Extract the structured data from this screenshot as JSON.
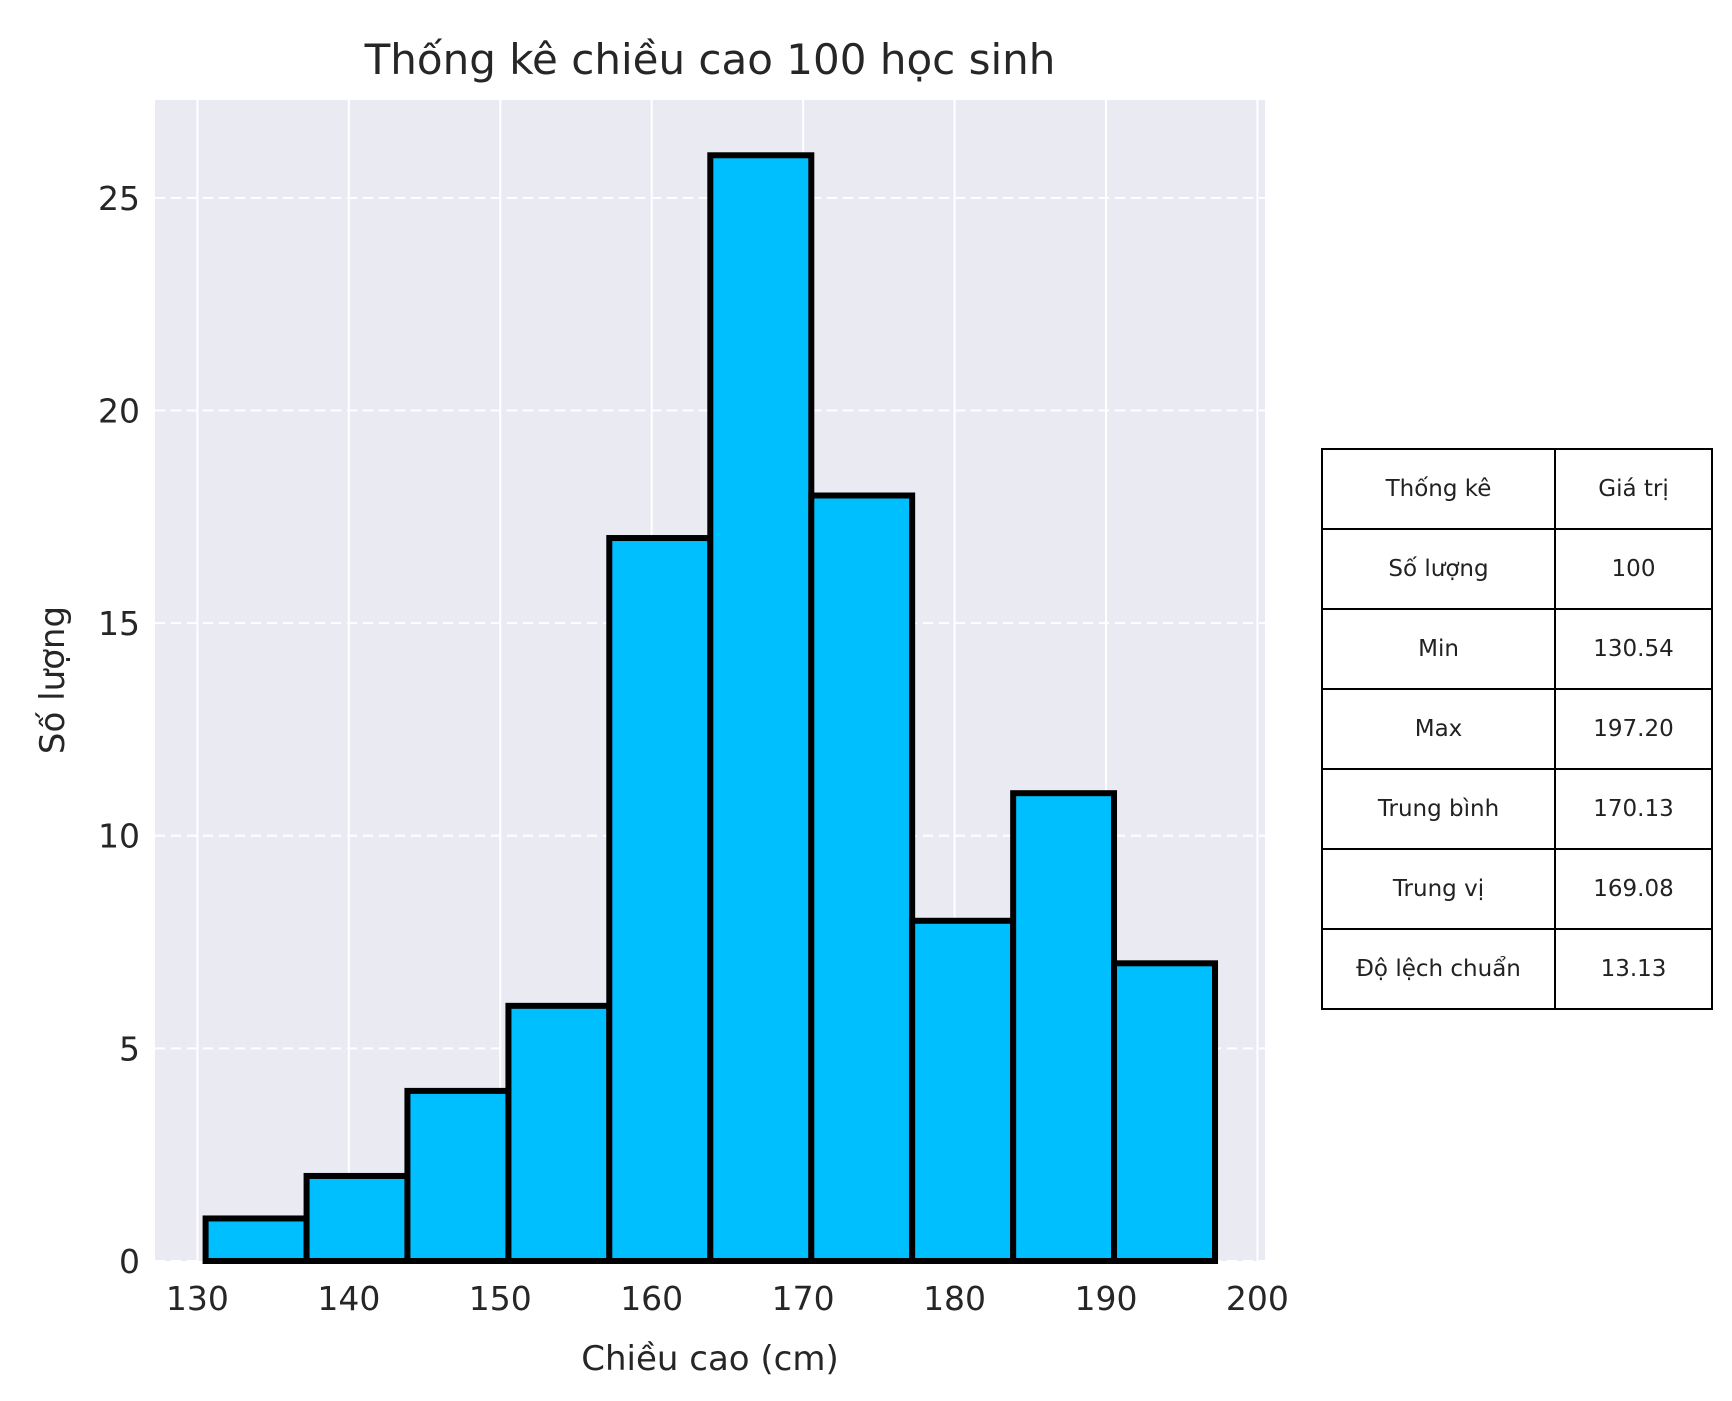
{
  "chart_data": {
    "type": "bar",
    "title": "Thống kê chiều cao 100 học sinh",
    "xlabel": "Chiều cao (cm)",
    "ylabel": "Số lượng",
    "bin_edges": [
      130.54,
      137.21,
      143.87,
      150.54,
      157.2,
      163.87,
      170.54,
      177.2,
      183.87,
      190.53,
      197.2
    ],
    "values": [
      1,
      2,
      4,
      6,
      17,
      26,
      18,
      8,
      11,
      7
    ],
    "xlim": [
      127.2,
      200.5
    ],
    "ylim": [
      0,
      27.3
    ],
    "xticks": [
      130,
      140,
      150,
      160,
      170,
      180,
      190,
      200
    ],
    "yticks": [
      0,
      5,
      10,
      15,
      20,
      25
    ],
    "grid": true,
    "bar_color": "#00BFFF",
    "edge_color": "#000000",
    "plot_background": "#EAEAF2"
  },
  "stats_table": {
    "header": [
      "Thống kê",
      "Giá trị"
    ],
    "rows": [
      [
        "Số lượng",
        "100"
      ],
      [
        "Min",
        "130.54"
      ],
      [
        "Max",
        "197.20"
      ],
      [
        "Trung bình",
        "170.13"
      ],
      [
        "Trung vị",
        "169.08"
      ],
      [
        "Độ lệch chuẩn",
        "13.13"
      ]
    ]
  }
}
